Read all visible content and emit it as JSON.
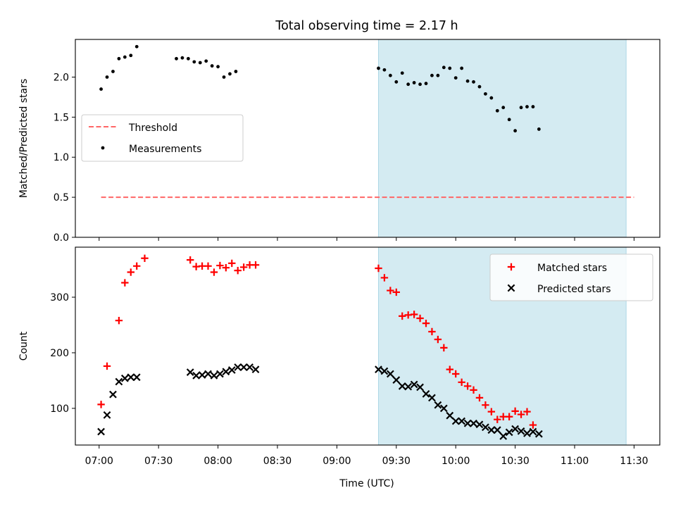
{
  "title": "Total observing time = 2.17 h",
  "xlabel": "Time (UTC)",
  "x_ticks": [
    "07:00",
    "07:30",
    "08:00",
    "08:30",
    "09:00",
    "09:30",
    "10:00",
    "10:30",
    "11:00",
    "11:30"
  ],
  "highlight": {
    "start": "09:21",
    "end": "11:26",
    "color": "#add8e6"
  },
  "chart_data": [
    {
      "type": "scatter",
      "ylabel": "Matched/Predicted stars",
      "ylim": [
        0,
        2.47
      ],
      "y_ticks": [
        "0.0",
        "0.5",
        "1.0",
        "1.5",
        "2.0"
      ],
      "legend": {
        "placement": "center-left",
        "entries": [
          "Threshold",
          "Measurements"
        ]
      },
      "threshold": {
        "name": "Threshold",
        "value": 0.5,
        "x_start": "07:01",
        "x_end": "11:30",
        "color": "#ff6666"
      },
      "series": [
        {
          "name": "Measurements",
          "color": "#000000",
          "x": [
            "07:01",
            "07:04",
            "07:07",
            "07:10",
            "07:13",
            "07:16",
            "07:19",
            "07:23",
            "07:27",
            "07:30",
            "07:33",
            "07:36",
            "07:39",
            "07:42",
            "07:45",
            "07:48",
            "07:51",
            "07:54",
            "07:57",
            "08:00",
            "08:03",
            "08:06",
            "08:09",
            "08:12",
            "08:15",
            "08:18",
            "08:21",
            "08:24",
            "08:27",
            "08:30",
            "08:33",
            "08:36",
            "08:39",
            "08:42",
            "08:45",
            "08:48",
            "08:51",
            "08:54",
            "08:57",
            "09:00",
            "09:03",
            "09:06",
            "09:09",
            "09:12",
            "09:15",
            "09:18",
            "09:21",
            "09:24",
            "09:27",
            "09:30",
            "09:33",
            "09:36",
            "09:39",
            "09:42",
            "09:45",
            "09:48",
            "09:51",
            "09:54",
            "09:57",
            "10:00",
            "10:03",
            "10:06",
            "10:09",
            "10:12",
            "10:15",
            "10:18",
            "10:21",
            "10:24",
            "10:27",
            "10:30",
            "10:33",
            "10:36",
            "10:39",
            "10:42",
            "10:45",
            "10:48",
            "10:51",
            "10:54",
            "10:57",
            "11:00",
            "11:03",
            "11:06",
            "11:09",
            "11:12",
            "11:15",
            "11:18",
            "11:21",
            "11:24",
            "11:27",
            "11:30"
          ],
          "y": [
            1.85,
            2.0,
            2.07,
            2.23,
            2.25,
            2.27,
            2.38,
            null,
            null,
            null,
            null,
            null,
            2.23,
            2.24,
            2.23,
            2.19,
            2.18,
            2.2,
            2.14,
            2.13,
            2.0,
            2.04,
            2.07,
            null,
            null,
            null,
            null,
            null,
            null,
            null,
            null,
            null,
            null,
            null,
            null,
            null,
            null,
            null,
            null,
            null,
            null,
            null,
            null,
            null,
            null,
            null,
            2.11,
            2.09,
            2.02,
            1.94,
            2.05,
            1.91,
            1.93,
            1.91,
            1.92,
            2.02,
            2.02,
            2.12,
            2.11,
            1.99,
            2.11,
            1.95,
            1.94,
            1.88,
            1.79,
            1.74,
            1.58,
            1.62,
            1.47,
            1.33,
            1.62,
            1.63,
            1.63,
            1.35,
            null,
            null,
            null,
            null,
            null,
            null,
            null,
            null,
            null,
            null,
            null,
            null,
            null,
            null,
            null,
            null
          ]
        }
      ]
    },
    {
      "type": "scatter",
      "ylabel": "Count",
      "ylim": [
        34,
        390
      ],
      "y_ticks": [
        "100",
        "200",
        "300"
      ],
      "legend": {
        "placement": "top-right",
        "entries": [
          "Matched stars",
          "Predicted stars"
        ]
      },
      "series": [
        {
          "name": "Matched stars",
          "color": "#ff0000",
          "marker": "+",
          "x": [
            "07:01",
            "07:04",
            "07:10",
            "07:13",
            "07:16",
            "07:19",
            "07:23",
            "07:46",
            "07:49",
            "07:52",
            "07:55",
            "07:58",
            "08:01",
            "08:04",
            "08:07",
            "08:10",
            "08:13",
            "08:16",
            "08:19",
            "09:21",
            "09:24",
            "09:27",
            "09:30",
            "09:33",
            "09:36",
            "09:39",
            "09:42",
            "09:45",
            "09:48",
            "09:51",
            "09:54",
            "09:57",
            "10:00",
            "10:03",
            "10:06",
            "10:09",
            "10:12",
            "10:15",
            "10:18",
            "10:21",
            "10:24",
            "10:27",
            "10:30",
            "10:33",
            "10:36",
            "10:39",
            "10:42",
            "10:45",
            "10:48",
            "10:51",
            "10:54",
            "10:57",
            "11:00",
            "11:03",
            "11:06",
            "11:09",
            "11:12",
            "11:15",
            "11:18",
            "11:21",
            "11:24",
            "11:27",
            "11:30"
          ],
          "y": [
            107,
            176,
            258,
            326,
            345,
            356,
            370,
            367,
            355,
            356,
            356,
            345,
            357,
            353,
            361,
            348,
            354,
            358,
            358,
            352,
            335,
            312,
            309,
            266,
            268,
            269,
            262,
            253,
            238,
            224,
            209,
            170,
            162,
            147,
            140,
            133,
            119,
            106,
            94,
            80,
            85,
            85,
            95,
            89,
            94,
            70,
            null,
            null,
            null,
            null,
            null,
            null,
            null,
            null,
            null,
            null,
            null,
            null,
            null,
            null,
            null,
            null,
            null
          ]
        },
        {
          "name": "Predicted stars",
          "color": "#000000",
          "marker": "x",
          "x": [
            "07:01",
            "07:04",
            "07:07",
            "07:10",
            "07:13",
            "07:16",
            "07:19",
            "07:46",
            "07:49",
            "07:52",
            "07:55",
            "07:58",
            "08:01",
            "08:04",
            "08:07",
            "08:10",
            "08:13",
            "08:16",
            "08:19",
            "09:21",
            "09:24",
            "09:27",
            "09:30",
            "09:33",
            "09:36",
            "09:39",
            "09:42",
            "09:45",
            "09:48",
            "09:51",
            "09:54",
            "09:57",
            "10:00",
            "10:03",
            "10:06",
            "10:09",
            "10:12",
            "10:15",
            "10:18",
            "10:21",
            "10:24",
            "10:27",
            "10:30",
            "10:33",
            "10:36",
            "10:39",
            "10:42",
            "10:45",
            "10:48",
            "10:51",
            "10:54",
            "10:57",
            "11:00",
            "11:03",
            "11:06",
            "11:09",
            "11:12",
            "11:15",
            "11:18",
            "11:21",
            "11:24",
            "11:27",
            "11:30"
          ],
          "y": [
            58,
            88,
            125,
            148,
            154,
            156,
            156,
            165,
            159,
            160,
            162,
            159,
            162,
            166,
            169,
            174,
            174,
            174,
            170,
            170,
            167,
            162,
            151,
            140,
            139,
            143,
            138,
            126,
            119,
            106,
            100,
            87,
            77,
            77,
            73,
            73,
            71,
            66,
            61,
            61,
            50,
            57,
            63,
            59,
            55,
            58,
            54,
            null,
            null,
            null,
            null,
            null,
            null,
            null,
            null,
            null,
            null,
            null,
            null,
            null,
            null,
            null,
            null
          ]
        }
      ]
    }
  ]
}
